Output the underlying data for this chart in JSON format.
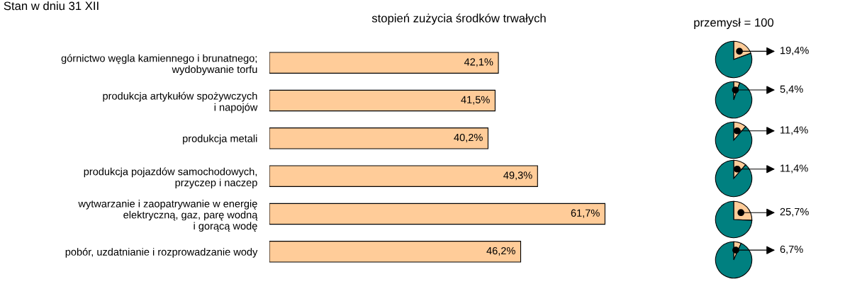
{
  "chart_data": [
    {
      "type": "bar",
      "orientation": "horizontal",
      "title": "stopień zużycia środków trwałych",
      "annotations": [
        "Stan w dniu 31 XII"
      ],
      "categories": [
        "górnictwo węgla kamiennego i brunatnego;\nwydobywanie torfu",
        "produkcja artykułów spożywczych\ni napojów",
        "produkcja metali",
        "produkcja pojazdów samochodowych,\nprzyczep i naczep",
        "wytwarzanie i zaopatrywanie w energię\nelektryczną, gaz, parę wodną\ni gorącą wodę",
        "pobór, uzdatnianie i rozprowadzanie wody"
      ],
      "values": [
        42.1,
        41.5,
        40.2,
        49.3,
        61.7,
        46.2
      ],
      "color": "#ffcc99",
      "value_labels": [
        "42,1%",
        "41,5%",
        "40,2%",
        "49,3%",
        "61,7%",
        "46,2%"
      ]
    },
    {
      "type": "pie",
      "title": "przemysł = 100",
      "categories": [
        null,
        null
      ],
      "values": [
        19.4,
        80.6
      ],
      "colors": [
        "#ffcc99",
        "#008080"
      ],
      "value_labels": [
        "19,4%",
        null
      ]
    },
    {
      "type": "pie",
      "categories": [
        null,
        null
      ],
      "values": [
        5.4,
        94.6
      ],
      "colors": [
        "#ffcc99",
        "#008080"
      ],
      "value_labels": [
        "5,4%",
        null
      ]
    },
    {
      "type": "pie",
      "categories": [
        null,
        null
      ],
      "values": [
        11.4,
        88.6
      ],
      "colors": [
        "#ffcc99",
        "#008080"
      ],
      "value_labels": [
        "11,4%",
        null
      ]
    },
    {
      "type": "pie",
      "categories": [
        null,
        null
      ],
      "values": [
        11.4,
        88.6
      ],
      "colors": [
        "#ffcc99",
        "#008080"
      ],
      "value_labels": [
        "11,4%",
        null
      ]
    },
    {
      "type": "pie",
      "categories": [
        null,
        null
      ],
      "values": [
        25.7,
        74.3
      ],
      "colors": [
        "#ffcc99",
        "#008080"
      ],
      "value_labels": [
        "25,7%",
        null
      ]
    },
    {
      "type": "pie",
      "categories": [
        null,
        null
      ],
      "values": [
        6.7,
        93.3
      ],
      "colors": [
        "#ffcc99",
        "#008080"
      ],
      "value_labels": [
        "6,7%",
        null
      ]
    }
  ]
}
